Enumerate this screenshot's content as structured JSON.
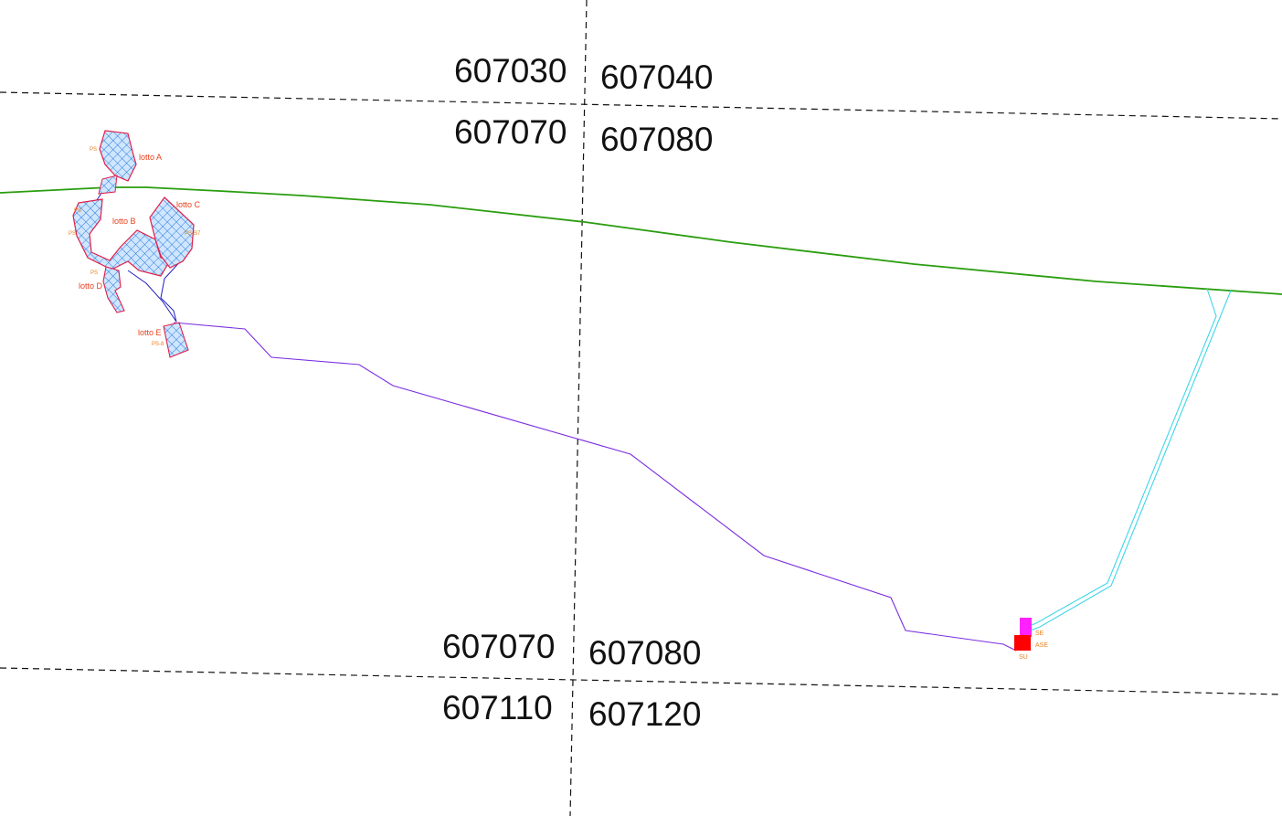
{
  "map": {
    "sheet_labels": {
      "top_left_upper": "607030",
      "top_right_upper": "607040",
      "top_left_lower": "607070",
      "top_right_lower": "607080",
      "bottom_left_upper": "607070",
      "bottom_right_upper": "607080",
      "bottom_left_lower": "607110",
      "bottom_right_lower": "607120"
    },
    "lots": {
      "a": "lotto A",
      "b": "lotto B",
      "c": "lotto C",
      "d": "lotto D",
      "e": "lotto E"
    },
    "ps_labels": {
      "a": "PS",
      "b1": "PS",
      "b2": "PS",
      "c": "PS-B7",
      "d": "PS",
      "e": "PS-8"
    },
    "stations": {
      "se": "SE",
      "ase": "ASE",
      "su": "SU"
    },
    "colors": {
      "sheet_grid": "#111111",
      "green_line": "#2a9d0f",
      "cable_route": "#7b2fe0",
      "cyan_route": "#3ed6e8",
      "lot_border": "#e0204a",
      "lot_hatch": "#1a6fd8",
      "lot_fill": "#cfe6ff",
      "station_se": "#ff22ff",
      "station_ase": "#ff0000"
    }
  }
}
